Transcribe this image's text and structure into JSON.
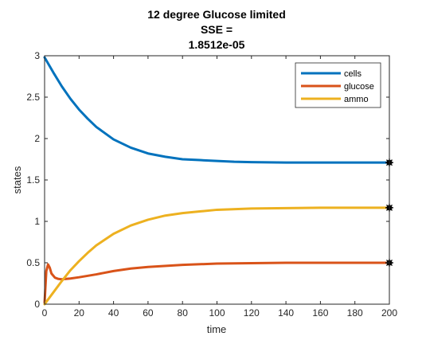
{
  "chart_data": {
    "type": "line",
    "title_lines": [
      "12 degree Glucose limited",
      "SSE =",
      "1.8512e-05"
    ],
    "xlabel": "time",
    "ylabel": "states",
    "xlim": [
      0,
      200
    ],
    "ylim": [
      0,
      3
    ],
    "xticks": [
      0,
      20,
      40,
      60,
      80,
      100,
      120,
      140,
      160,
      180,
      200
    ],
    "yticks": [
      0,
      0.5,
      1,
      1.5,
      2,
      2.5,
      3
    ],
    "ytick_labels": [
      "0",
      "0.5",
      "1",
      "1.5",
      "2",
      "2.5",
      "3"
    ],
    "grid": false,
    "legend_position": "top-right",
    "series": [
      {
        "name": "cells",
        "color": "#0072BD",
        "x": [
          0,
          5,
          10,
          15,
          20,
          25,
          30,
          40,
          50,
          60,
          70,
          80,
          90,
          100,
          110,
          120,
          140,
          160,
          180,
          200
        ],
        "y": [
          2.98,
          2.8,
          2.63,
          2.48,
          2.35,
          2.24,
          2.14,
          1.99,
          1.89,
          1.82,
          1.78,
          1.75,
          1.74,
          1.73,
          1.72,
          1.715,
          1.71,
          1.71,
          1.71,
          1.71
        ]
      },
      {
        "name": "glucose",
        "color": "#D95319",
        "x": [
          0,
          1,
          2,
          3,
          4,
          6,
          8,
          10,
          15,
          20,
          30,
          40,
          50,
          60,
          80,
          100,
          120,
          140,
          160,
          180,
          200
        ],
        "y": [
          0.02,
          0.4,
          0.48,
          0.44,
          0.37,
          0.32,
          0.305,
          0.3,
          0.31,
          0.325,
          0.36,
          0.4,
          0.43,
          0.45,
          0.475,
          0.49,
          0.495,
          0.5,
          0.5,
          0.5,
          0.5
        ]
      },
      {
        "name": "ammo",
        "color": "#EDB120",
        "x": [
          0,
          5,
          10,
          15,
          20,
          25,
          30,
          40,
          50,
          60,
          70,
          80,
          90,
          100,
          120,
          140,
          160,
          180,
          200
        ],
        "y": [
          0.0,
          0.14,
          0.28,
          0.41,
          0.52,
          0.62,
          0.71,
          0.85,
          0.95,
          1.02,
          1.07,
          1.1,
          1.12,
          1.14,
          1.155,
          1.16,
          1.165,
          1.165,
          1.165
        ]
      }
    ],
    "end_markers": [
      {
        "x": 200,
        "y": 1.71
      },
      {
        "x": 200,
        "y": 1.165
      },
      {
        "x": 200,
        "y": 0.5
      }
    ]
  }
}
